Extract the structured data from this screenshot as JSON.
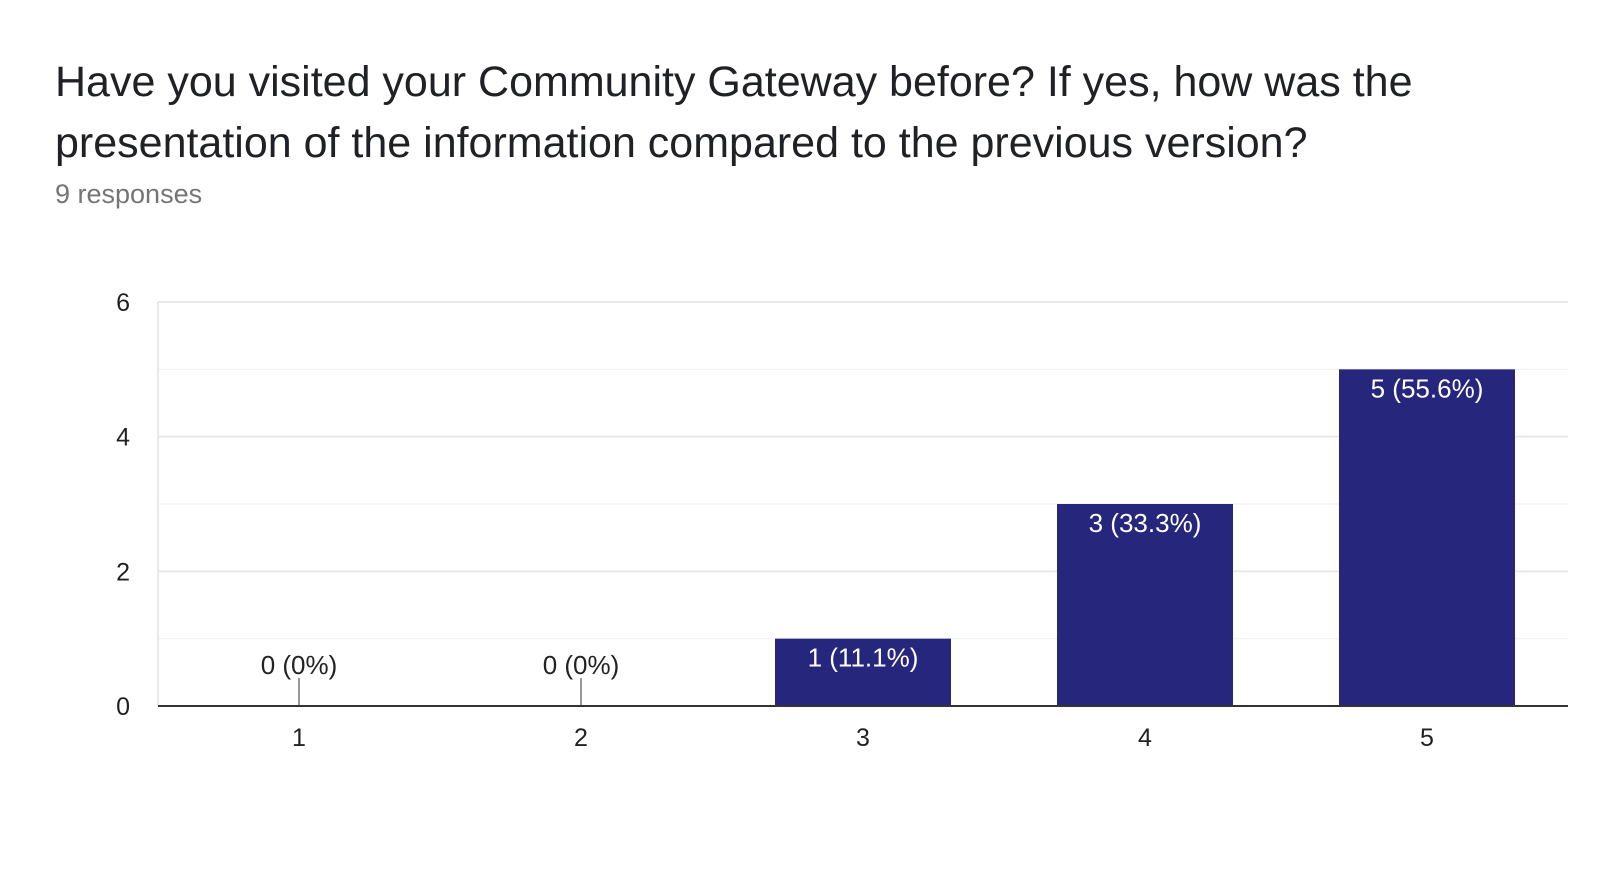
{
  "question": {
    "title": "Have you visited your Community Gateway before? If yes, how was the presentation of the information compared to the previous version?",
    "responses_label": "9 responses"
  },
  "colors": {
    "bar": "#26267c",
    "grid": "#e8e8e8",
    "grid_minor": "#f3f3f3",
    "axis": "#333333",
    "tick_text": "#222222",
    "label_inside": "#ffffff",
    "label_outside": "#222222"
  },
  "chart_data": {
    "type": "bar",
    "categories": [
      "1",
      "2",
      "3",
      "4",
      "5"
    ],
    "values": [
      0,
      0,
      1,
      3,
      5
    ],
    "data_labels": [
      "0 (0%)",
      "0 (0%)",
      "1 (11.1%)",
      "3 (33.3%)",
      "5 (55.6%)"
    ],
    "ylim": [
      0,
      6
    ],
    "yticks": [
      0,
      2,
      4,
      6
    ],
    "grid": true,
    "legend": "none"
  }
}
